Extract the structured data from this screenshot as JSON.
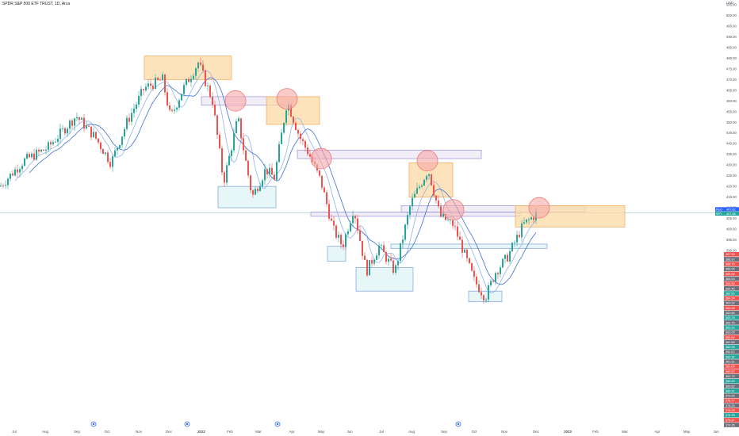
{
  "window": {
    "title": "SPDR S&P 500 ETF TRUST, 1D, Arca"
  },
  "colors": {
    "up": "#26a69a",
    "down": "#ef5350",
    "ma_fast": "#8fb3e8",
    "ma_slow": "#3d6fd6",
    "orange_fill": "#fbd9a5",
    "orange_stroke": "#f5a454",
    "blue_fill": "#dff3f3",
    "blue_stroke": "#7aa0d9",
    "lavender_fill": "#ece8f6",
    "lavender_stroke": "#9a8fd6",
    "circle_fill": "#f6a9a8",
    "circle_stroke": "#ef7a7a",
    "current_line": "#8fd0cc",
    "grid_text": "#4a4f5a"
  },
  "chart_data": {
    "type": "candlestick",
    "title": "SPDR S&P 500 ETF TRUST, 1D, Arca",
    "currency": "USD",
    "x_ticks": [
      "Jul",
      "Aug",
      "Sep",
      "Oct",
      "Nov",
      "Dec",
      "2022",
      "Feb",
      "Mar",
      "Apr",
      "May",
      "Jun",
      "Jul",
      "Aug",
      "Sep",
      "Oct",
      "Nov",
      "Dec",
      "2023",
      "Feb",
      "Mar",
      "Apr",
      "May",
      "Jun"
    ],
    "ylim": [
      366,
      511
    ],
    "y_ticks": [
      505,
      500,
      495,
      490,
      485,
      480,
      475,
      470,
      465,
      460,
      455,
      450,
      445,
      440,
      435,
      430,
      425,
      420,
      415,
      410,
      405,
      400,
      395,
      390
    ],
    "price_path": [
      {
        "x": 0,
        "p": 420
      },
      {
        "x": 30,
        "p": 432
      },
      {
        "x": 60,
        "p": 438
      },
      {
        "x": 96,
        "p": 453
      },
      {
        "x": 120,
        "p": 443
      },
      {
        "x": 140,
        "p": 431
      },
      {
        "x": 160,
        "p": 450
      },
      {
        "x": 182,
        "p": 466
      },
      {
        "x": 205,
        "p": 470
      },
      {
        "x": 215,
        "p": 452
      },
      {
        "x": 230,
        "p": 465
      },
      {
        "x": 250,
        "p": 478
      },
      {
        "x": 268,
        "p": 460
      },
      {
        "x": 282,
        "p": 422
      },
      {
        "x": 300,
        "p": 452
      },
      {
        "x": 318,
        "p": 415
      },
      {
        "x": 335,
        "p": 428
      },
      {
        "x": 346,
        "p": 424
      },
      {
        "x": 362,
        "p": 460
      },
      {
        "x": 378,
        "p": 443
      },
      {
        "x": 390,
        "p": 435
      },
      {
        "x": 405,
        "p": 422
      },
      {
        "x": 420,
        "p": 400
      },
      {
        "x": 432,
        "p": 392
      },
      {
        "x": 446,
        "p": 410
      },
      {
        "x": 462,
        "p": 380
      },
      {
        "x": 478,
        "p": 392
      },
      {
        "x": 498,
        "p": 380
      },
      {
        "x": 518,
        "p": 412
      },
      {
        "x": 540,
        "p": 428
      },
      {
        "x": 555,
        "p": 406
      },
      {
        "x": 572,
        "p": 402
      },
      {
        "x": 582,
        "p": 392
      },
      {
        "x": 598,
        "p": 376
      },
      {
        "x": 612,
        "p": 368
      },
      {
        "x": 625,
        "p": 380
      },
      {
        "x": 640,
        "p": 387
      },
      {
        "x": 660,
        "p": 402
      },
      {
        "x": 676,
        "p": 407
      }
    ],
    "moving_averages": [
      {
        "name": "MA fast",
        "offset": 6
      },
      {
        "name": "MA slow",
        "offset": 12
      }
    ],
    "drawings": {
      "orange_boxes": [
        {
          "x0": 182,
          "x1": 292,
          "p_top": 481,
          "p_bot": 470
        },
        {
          "x0": 336,
          "x1": 403,
          "p_top": 462,
          "p_bot": 449
        },
        {
          "x0": 516,
          "x1": 571,
          "p_top": 431,
          "p_bot": 415
        },
        {
          "x0": 650,
          "x1": 788,
          "p_top": 411,
          "p_bot": 401
        }
      ],
      "lavender_boxes": [
        {
          "x0": 254,
          "x1": 368,
          "p_top": 462,
          "p_bot": 458
        },
        {
          "x0": 375,
          "x1": 607,
          "p_top": 437,
          "p_bot": 433
        },
        {
          "x0": 392,
          "x1": 656,
          "p_top": 408,
          "p_bot": 406
        },
        {
          "x0": 506,
          "x1": 738,
          "p_top": 411,
          "p_bot": 408
        }
      ],
      "blue_boxes": [
        {
          "x0": 275,
          "x1": 348,
          "p_top": 420,
          "p_bot": 410
        },
        {
          "x0": 413,
          "x1": 436,
          "p_top": 392,
          "p_bot": 385
        },
        {
          "x0": 449,
          "x1": 521,
          "p_top": 382,
          "p_bot": 371
        },
        {
          "x0": 493,
          "x1": 690,
          "p_top": 393,
          "p_bot": 391
        },
        {
          "x0": 591,
          "x1": 633,
          "p_top": 371,
          "p_bot": 366
        }
      ],
      "circles": [
        {
          "x": 297,
          "p": 460
        },
        {
          "x": 362,
          "p": 461
        },
        {
          "x": 405,
          "p": 433
        },
        {
          "x": 539,
          "p": 432
        },
        {
          "x": 572,
          "p": 409
        },
        {
          "x": 680,
          "p": 410
        }
      ]
    },
    "current_price": 407.68,
    "price_labels": [
      {
        "label": "Rect",
        "value": "407.82",
        "color": "#2962ff"
      },
      {
        "label": "SPY",
        "value": "407.68",
        "color": "#26a69a"
      }
    ],
    "order_stack": [
      {
        "v": "387.33",
        "c": "red"
      },
      {
        "v": "386.97",
        "c": "gray"
      },
      {
        "v": "386.73",
        "c": "red"
      },
      {
        "v": "385.96",
        "c": "gray"
      },
      {
        "v": "385.06",
        "c": "red"
      },
      {
        "v": "384.53",
        "c": "gray"
      },
      {
        "v": "384.54",
        "c": "red"
      },
      {
        "v": "384.46",
        "c": "gray"
      },
      {
        "v": "384.59",
        "c": "teal"
      },
      {
        "v": "384.24",
        "c": "red"
      },
      {
        "v": "383.92",
        "c": "gray"
      },
      {
        "v": "384.06",
        "c": "red"
      },
      {
        "v": "383.85",
        "c": "gray"
      },
      {
        "v": "383.78",
        "c": "teal"
      },
      {
        "v": "383.75",
        "c": "gray"
      },
      {
        "v": "383.20",
        "c": "teal"
      },
      {
        "v": "383.05",
        "c": "gray"
      },
      {
        "v": "382.64",
        "c": "red"
      },
      {
        "v": "382.65",
        "c": "gray"
      },
      {
        "v": "382.98",
        "c": "teal"
      },
      {
        "v": "382.57",
        "c": "gray"
      },
      {
        "v": "382.32",
        "c": "teal"
      },
      {
        "v": "381.61",
        "c": "gray"
      },
      {
        "v": "381.00",
        "c": "red"
      },
      {
        "v": "380.57",
        "c": "red"
      },
      {
        "v": "380.79",
        "c": "gray"
      },
      {
        "v": "380.69",
        "c": "teal"
      },
      {
        "v": "380.82",
        "c": "gray"
      },
      {
        "v": "380.21",
        "c": "teal"
      },
      {
        "v": "379.92",
        "c": "gray"
      },
      {
        "v": "378.77",
        "c": "red"
      },
      {
        "v": "378.24",
        "c": "gray"
      },
      {
        "v": "378.28",
        "c": "red"
      },
      {
        "v": "376.75",
        "c": "teal"
      },
      {
        "v": "375.47",
        "c": "red"
      },
      {
        "v": "374.35",
        "c": "gray"
      }
    ],
    "event_markers_at": [
      118,
      236,
      350,
      578
    ]
  }
}
